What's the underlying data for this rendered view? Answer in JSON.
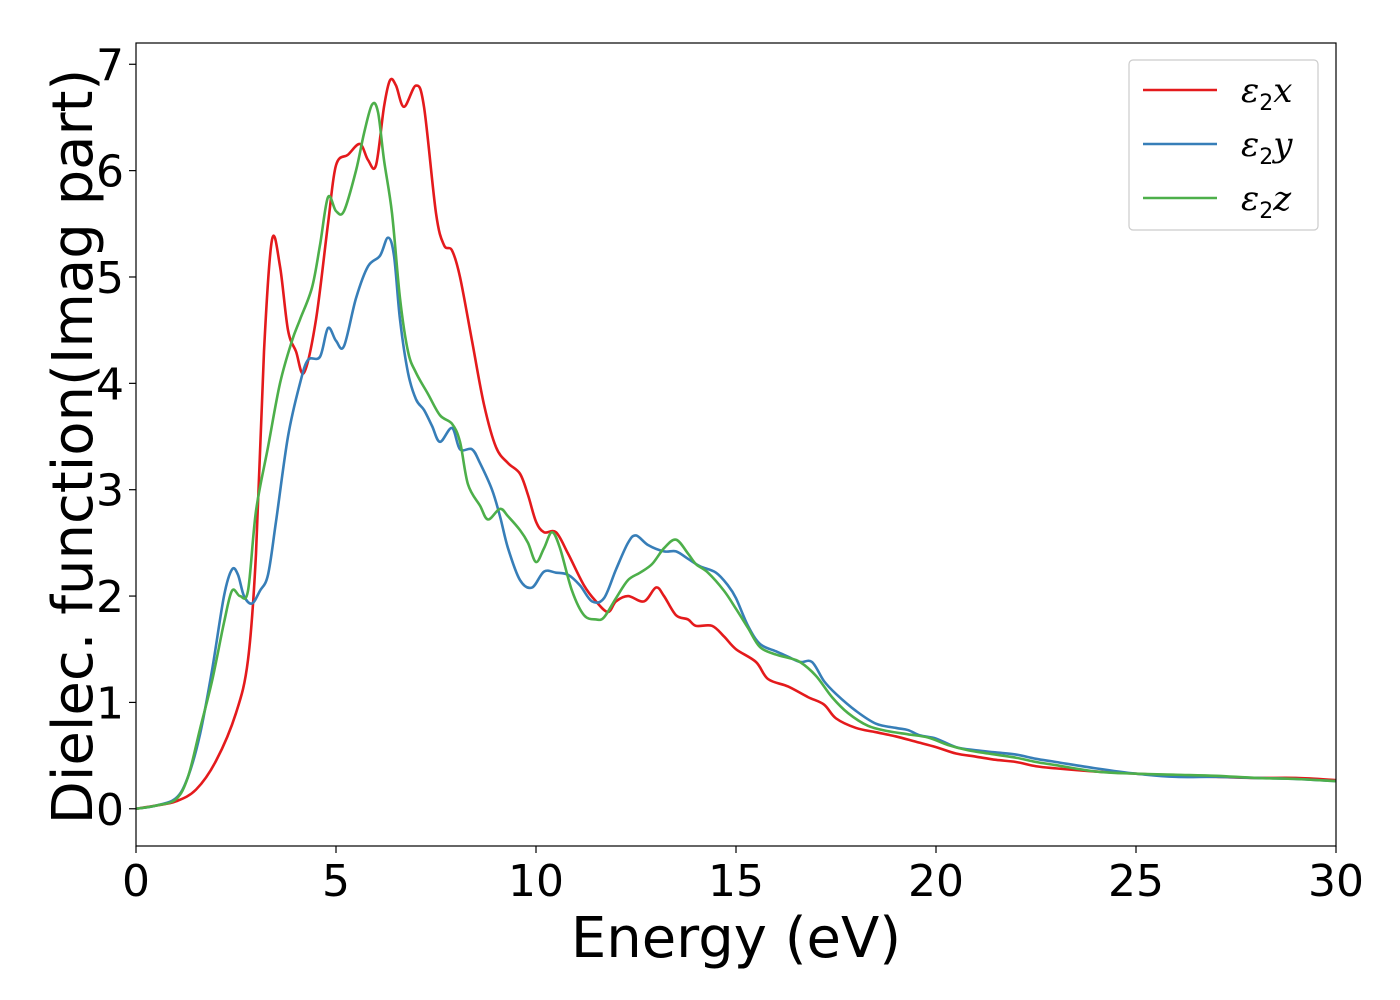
{
  "chart_data": {
    "type": "line",
    "xlabel": "Energy (eV)",
    "ylabel": "Dielec. function(Imag part)",
    "xlim": [
      0,
      30
    ],
    "ylim": [
      -0.35,
      7.2
    ],
    "xticks": [
      0,
      5,
      10,
      15,
      20,
      25,
      30
    ],
    "yticks": [
      0,
      1,
      2,
      3,
      4,
      5,
      6,
      7
    ],
    "grid": false,
    "legend_placement": "top-right",
    "series": [
      {
        "name": "ε2x",
        "legend_main": "ε",
        "legend_sub": "2",
        "legend_var": "x",
        "color": "#e41a1c",
        "points": [
          [
            0,
            0
          ],
          [
            0.5,
            0.03
          ],
          [
            1.0,
            0.07
          ],
          [
            1.5,
            0.18
          ],
          [
            2.0,
            0.45
          ],
          [
            2.5,
            0.9
          ],
          [
            2.8,
            1.4
          ],
          [
            3.0,
            2.4
          ],
          [
            3.2,
            4.3
          ],
          [
            3.4,
            5.35
          ],
          [
            3.6,
            5.1
          ],
          [
            3.8,
            4.5
          ],
          [
            4.0,
            4.3
          ],
          [
            4.2,
            4.1
          ],
          [
            4.5,
            4.6
          ],
          [
            4.8,
            5.5
          ],
          [
            5.0,
            6.05
          ],
          [
            5.3,
            6.15
          ],
          [
            5.6,
            6.25
          ],
          [
            5.8,
            6.1
          ],
          [
            6.0,
            6.05
          ],
          [
            6.2,
            6.6
          ],
          [
            6.35,
            6.85
          ],
          [
            6.5,
            6.8
          ],
          [
            6.7,
            6.6
          ],
          [
            7.0,
            6.8
          ],
          [
            7.2,
            6.6
          ],
          [
            7.5,
            5.6
          ],
          [
            7.7,
            5.3
          ],
          [
            7.9,
            5.25
          ],
          [
            8.1,
            5.0
          ],
          [
            8.4,
            4.4
          ],
          [
            8.7,
            3.8
          ],
          [
            9.0,
            3.4
          ],
          [
            9.3,
            3.25
          ],
          [
            9.6,
            3.15
          ],
          [
            9.8,
            2.95
          ],
          [
            10.0,
            2.7
          ],
          [
            10.2,
            2.6
          ],
          [
            10.5,
            2.6
          ],
          [
            10.8,
            2.4
          ],
          [
            11.2,
            2.1
          ],
          [
            11.5,
            1.95
          ],
          [
            11.8,
            1.85
          ],
          [
            12.0,
            1.95
          ],
          [
            12.3,
            2.0
          ],
          [
            12.7,
            1.95
          ],
          [
            13.0,
            2.08
          ],
          [
            13.2,
            2.0
          ],
          [
            13.5,
            1.82
          ],
          [
            13.8,
            1.78
          ],
          [
            14.0,
            1.72
          ],
          [
            14.4,
            1.72
          ],
          [
            14.7,
            1.62
          ],
          [
            15.0,
            1.5
          ],
          [
            15.5,
            1.38
          ],
          [
            15.8,
            1.22
          ],
          [
            16.3,
            1.15
          ],
          [
            16.8,
            1.05
          ],
          [
            17.2,
            0.98
          ],
          [
            17.5,
            0.85
          ],
          [
            18.0,
            0.76
          ],
          [
            18.5,
            0.72
          ],
          [
            19.0,
            0.68
          ],
          [
            19.5,
            0.63
          ],
          [
            20.0,
            0.58
          ],
          [
            20.5,
            0.52
          ],
          [
            21.0,
            0.49
          ],
          [
            21.5,
            0.46
          ],
          [
            22.0,
            0.44
          ],
          [
            22.5,
            0.4
          ],
          [
            23.0,
            0.38
          ],
          [
            24.0,
            0.35
          ],
          [
            25.0,
            0.33
          ],
          [
            26.0,
            0.31
          ],
          [
            27.0,
            0.3
          ],
          [
            28.0,
            0.29
          ],
          [
            29.0,
            0.29
          ],
          [
            30.0,
            0.27
          ]
        ]
      },
      {
        "name": "ε2y",
        "legend_main": "ε",
        "legend_sub": "2",
        "legend_var": "y",
        "color": "#377eb8",
        "points": [
          [
            0,
            0
          ],
          [
            0.5,
            0.03
          ],
          [
            1.0,
            0.1
          ],
          [
            1.3,
            0.3
          ],
          [
            1.6,
            0.7
          ],
          [
            1.9,
            1.3
          ],
          [
            2.2,
            2.0
          ],
          [
            2.4,
            2.25
          ],
          [
            2.55,
            2.2
          ],
          [
            2.7,
            2.0
          ],
          [
            2.9,
            1.93
          ],
          [
            3.1,
            2.05
          ],
          [
            3.3,
            2.2
          ],
          [
            3.5,
            2.7
          ],
          [
            3.8,
            3.5
          ],
          [
            4.1,
            4.0
          ],
          [
            4.3,
            4.22
          ],
          [
            4.6,
            4.25
          ],
          [
            4.8,
            4.52
          ],
          [
            5.0,
            4.4
          ],
          [
            5.2,
            4.35
          ],
          [
            5.5,
            4.8
          ],
          [
            5.8,
            5.1
          ],
          [
            6.1,
            5.2
          ],
          [
            6.3,
            5.37
          ],
          [
            6.45,
            5.2
          ],
          [
            6.6,
            4.6
          ],
          [
            6.8,
            4.1
          ],
          [
            7.0,
            3.85
          ],
          [
            7.2,
            3.75
          ],
          [
            7.4,
            3.6
          ],
          [
            7.6,
            3.45
          ],
          [
            7.9,
            3.58
          ],
          [
            8.1,
            3.38
          ],
          [
            8.4,
            3.38
          ],
          [
            8.6,
            3.25
          ],
          [
            8.9,
            3.0
          ],
          [
            9.1,
            2.75
          ],
          [
            9.3,
            2.45
          ],
          [
            9.6,
            2.15
          ],
          [
            9.9,
            2.08
          ],
          [
            10.2,
            2.23
          ],
          [
            10.5,
            2.22
          ],
          [
            10.8,
            2.2
          ],
          [
            11.1,
            2.1
          ],
          [
            11.4,
            1.95
          ],
          [
            11.7,
            1.98
          ],
          [
            12.0,
            2.25
          ],
          [
            12.3,
            2.5
          ],
          [
            12.5,
            2.57
          ],
          [
            12.8,
            2.48
          ],
          [
            13.2,
            2.42
          ],
          [
            13.5,
            2.42
          ],
          [
            13.8,
            2.35
          ],
          [
            14.1,
            2.28
          ],
          [
            14.5,
            2.22
          ],
          [
            14.8,
            2.1
          ],
          [
            15.0,
            1.98
          ],
          [
            15.3,
            1.72
          ],
          [
            15.6,
            1.55
          ],
          [
            16.0,
            1.48
          ],
          [
            16.3,
            1.43
          ],
          [
            16.6,
            1.38
          ],
          [
            16.9,
            1.38
          ],
          [
            17.2,
            1.2
          ],
          [
            17.5,
            1.08
          ],
          [
            18.0,
            0.92
          ],
          [
            18.5,
            0.8
          ],
          [
            19.0,
            0.76
          ],
          [
            19.3,
            0.74
          ],
          [
            19.6,
            0.69
          ],
          [
            20.0,
            0.66
          ],
          [
            20.5,
            0.58
          ],
          [
            21.0,
            0.55
          ],
          [
            21.5,
            0.53
          ],
          [
            22.0,
            0.51
          ],
          [
            22.5,
            0.47
          ],
          [
            23.0,
            0.44
          ],
          [
            24.0,
            0.38
          ],
          [
            25.0,
            0.33
          ],
          [
            26.0,
            0.3
          ],
          [
            27.0,
            0.3
          ],
          [
            28.0,
            0.29
          ],
          [
            29.0,
            0.28
          ],
          [
            30.0,
            0.26
          ]
        ]
      },
      {
        "name": "ε2z",
        "legend_main": "ε",
        "legend_sub": "2",
        "legend_var": "z",
        "color": "#4daf4a",
        "points": [
          [
            0,
            0
          ],
          [
            0.5,
            0.03
          ],
          [
            1.0,
            0.09
          ],
          [
            1.3,
            0.3
          ],
          [
            1.6,
            0.75
          ],
          [
            1.9,
            1.2
          ],
          [
            2.2,
            1.75
          ],
          [
            2.4,
            2.05
          ],
          [
            2.6,
            2.0
          ],
          [
            2.8,
            2.05
          ],
          [
            3.0,
            2.8
          ],
          [
            3.3,
            3.4
          ],
          [
            3.6,
            4.0
          ],
          [
            3.9,
            4.4
          ],
          [
            4.1,
            4.6
          ],
          [
            4.4,
            4.9
          ],
          [
            4.6,
            5.3
          ],
          [
            4.8,
            5.75
          ],
          [
            5.0,
            5.62
          ],
          [
            5.2,
            5.62
          ],
          [
            5.5,
            6.0
          ],
          [
            5.7,
            6.35
          ],
          [
            5.9,
            6.62
          ],
          [
            6.05,
            6.55
          ],
          [
            6.2,
            6.1
          ],
          [
            6.4,
            5.6
          ],
          [
            6.6,
            4.8
          ],
          [
            6.8,
            4.3
          ],
          [
            7.0,
            4.1
          ],
          [
            7.3,
            3.9
          ],
          [
            7.6,
            3.7
          ],
          [
            7.9,
            3.62
          ],
          [
            8.1,
            3.45
          ],
          [
            8.3,
            3.05
          ],
          [
            8.6,
            2.85
          ],
          [
            8.8,
            2.72
          ],
          [
            9.1,
            2.82
          ],
          [
            9.3,
            2.75
          ],
          [
            9.6,
            2.62
          ],
          [
            9.8,
            2.5
          ],
          [
            10.0,
            2.32
          ],
          [
            10.2,
            2.45
          ],
          [
            10.4,
            2.6
          ],
          [
            10.6,
            2.45
          ],
          [
            10.9,
            2.05
          ],
          [
            11.2,
            1.82
          ],
          [
            11.5,
            1.78
          ],
          [
            11.7,
            1.8
          ],
          [
            12.0,
            1.98
          ],
          [
            12.3,
            2.15
          ],
          [
            12.6,
            2.22
          ],
          [
            12.9,
            2.3
          ],
          [
            13.2,
            2.45
          ],
          [
            13.5,
            2.53
          ],
          [
            13.8,
            2.4
          ],
          [
            14.0,
            2.3
          ],
          [
            14.3,
            2.22
          ],
          [
            14.7,
            2.05
          ],
          [
            15.0,
            1.88
          ],
          [
            15.3,
            1.7
          ],
          [
            15.6,
            1.52
          ],
          [
            16.0,
            1.45
          ],
          [
            16.3,
            1.42
          ],
          [
            16.6,
            1.38
          ],
          [
            17.0,
            1.25
          ],
          [
            17.4,
            1.05
          ],
          [
            17.8,
            0.9
          ],
          [
            18.3,
            0.78
          ],
          [
            18.8,
            0.73
          ],
          [
            19.3,
            0.7
          ],
          [
            19.8,
            0.67
          ],
          [
            20.3,
            0.6
          ],
          [
            20.8,
            0.55
          ],
          [
            21.3,
            0.52
          ],
          [
            22.0,
            0.48
          ],
          [
            22.5,
            0.44
          ],
          [
            23.0,
            0.41
          ],
          [
            24.0,
            0.35
          ],
          [
            25.0,
            0.33
          ],
          [
            26.0,
            0.32
          ],
          [
            27.0,
            0.31
          ],
          [
            28.0,
            0.29
          ],
          [
            29.0,
            0.28
          ],
          [
            30.0,
            0.26
          ]
        ]
      }
    ]
  }
}
